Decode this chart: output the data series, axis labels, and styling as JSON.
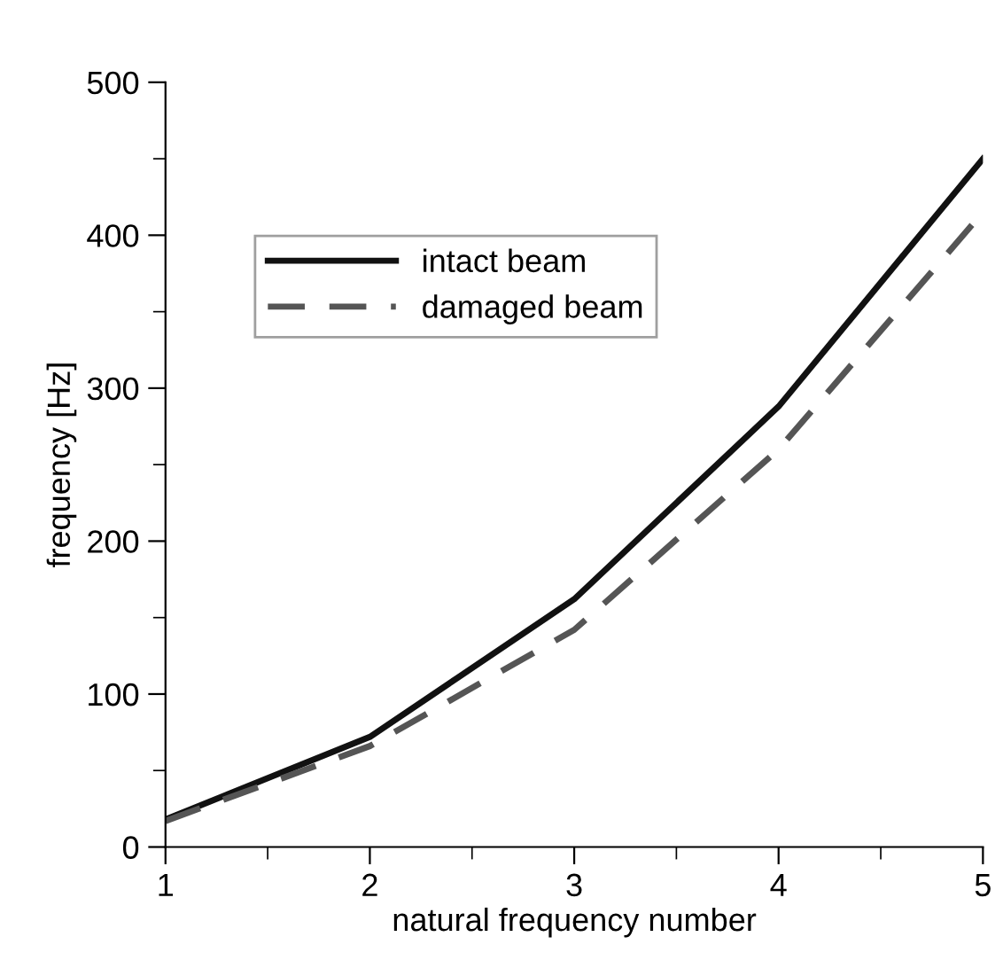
{
  "chart_data": {
    "type": "line",
    "xlabel": "natural frequency number",
    "ylabel": "frequency [Hz]",
    "x": [
      1,
      2,
      3,
      4,
      5
    ],
    "series": [
      {
        "name": "intact beam",
        "color": "#111111",
        "values": [
          18,
          72,
          162,
          288,
          450
        ],
        "line_style": "solid"
      },
      {
        "name": "damaged beam",
        "color": "#555555",
        "values": [
          17,
          66,
          142,
          260,
          415
        ],
        "line_style": "dashed"
      }
    ],
    "xlim": [
      1,
      5
    ],
    "xticks": [
      1,
      2,
      3,
      4,
      5
    ],
    "ylim": [
      0,
      500
    ],
    "yticks": [
      0,
      100,
      200,
      300,
      400,
      500
    ],
    "grid": false,
    "legend": "top left",
    "marker": "none"
  }
}
